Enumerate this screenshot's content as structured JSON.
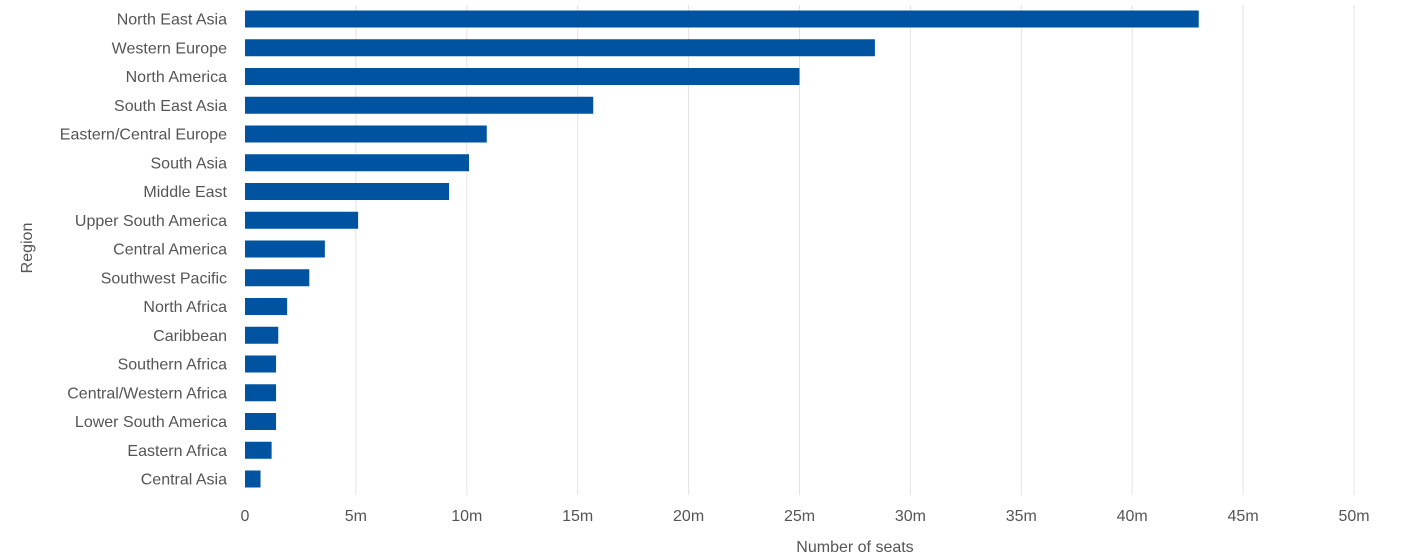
{
  "chart_data": {
    "type": "bar",
    "orientation": "horizontal",
    "categories": [
      "North East Asia",
      "Western Europe",
      "North America",
      "South East Asia",
      "Eastern/Central Europe",
      "South Asia",
      "Middle East",
      "Upper South America",
      "Central America",
      "Southwest Pacific",
      "North Africa",
      "Caribbean",
      "Southern Africa",
      "Central/Western Africa",
      "Lower South America",
      "Eastern Africa",
      "Central Asia"
    ],
    "values": [
      43.0,
      28.4,
      25.0,
      15.7,
      10.9,
      10.1,
      9.2,
      5.1,
      3.6,
      2.9,
      1.9,
      1.5,
      1.4,
      1.4,
      1.4,
      1.2,
      0.7
    ],
    "unit": "millions",
    "xlabel": "Number of seats",
    "ylabel": "Region",
    "xlim": [
      0,
      50
    ],
    "ticks": [
      0,
      5,
      10,
      15,
      20,
      25,
      30,
      35,
      40,
      45,
      50
    ],
    "tick_labels": [
      "0",
      "5m",
      "10m",
      "15m",
      "20m",
      "25m",
      "30m",
      "35m",
      "40m",
      "45m",
      "50m"
    ],
    "grid": "vertical",
    "legend": "none",
    "bar_color": "#0053a0",
    "grid_color": "#e3e3e3",
    "text_color": "#555555"
  }
}
